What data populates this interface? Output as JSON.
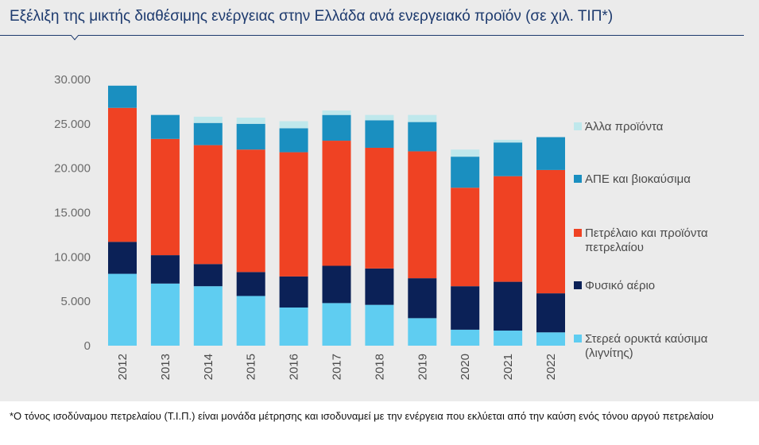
{
  "title": "Εξέλιξη της μικτής διαθέσιμης ενέργειας στην Ελλάδα ανά ενεργειακό προϊόν (σε χιλ. ΤΙΠ*)",
  "footnote": "*Ο τόνος ισοδύναμου πετρελαίου (Τ.Ι.Π.) είναι μονάδα μέτρησης και ισοδυναμεί με την ενέργεια που εκλύεται από την καύση ενός τόνου αργού πετρελαίου",
  "chart_data": {
    "type": "bar",
    "stacked": true,
    "title": "Εξέλιξη της μικτής διαθέσιμης ενέργειας στην Ελλάδα ανά ενεργειακό προϊόν (σε χιλ. ΤΙΠ*)",
    "xlabel": "",
    "ylabel": "",
    "ylim": [
      0,
      30000
    ],
    "yticks": [
      0,
      5000,
      10000,
      15000,
      20000,
      25000,
      30000
    ],
    "ytick_labels": [
      "0",
      "5.000",
      "10.000",
      "15.000",
      "20.000",
      "25.000",
      "30.000"
    ],
    "grid": false,
    "legend_position": "right",
    "categories": [
      "2012",
      "2013",
      "2014",
      "2015",
      "2016",
      "2017",
      "2018",
      "2019",
      "2020",
      "2021",
      "2022"
    ],
    "series": [
      {
        "name": "Στερεά ορυκτά καύσιμα (λιγνίτης)",
        "color": "#5fcdf1",
        "values": [
          8100,
          7000,
          6700,
          5600,
          4300,
          4800,
          4600,
          3100,
          1800,
          1700,
          1500
        ]
      },
      {
        "name": "Φυσικό αέριο",
        "color": "#0b2157",
        "values": [
          3600,
          3200,
          2500,
          2700,
          3500,
          4200,
          4100,
          4500,
          4900,
          5500,
          4400
        ]
      },
      {
        "name": "Πετρέλαιο και προϊόντα πετρελαίου",
        "color": "#ef4223",
        "values": [
          15100,
          13100,
          13400,
          13800,
          14000,
          14100,
          13600,
          14300,
          11100,
          11900,
          13900
        ]
      },
      {
        "name": "ΑΠΕ και βιοκαύσιμα",
        "color": "#1a8fc0",
        "values": [
          2500,
          2700,
          2500,
          2900,
          2700,
          2900,
          3100,
          3300,
          3500,
          3800,
          3700
        ]
      },
      {
        "name": "Άλλα προϊόντα",
        "color": "#bfe8ec",
        "values": [
          0,
          0,
          700,
          700,
          800,
          500,
          600,
          800,
          800,
          300,
          0
        ]
      }
    ]
  }
}
